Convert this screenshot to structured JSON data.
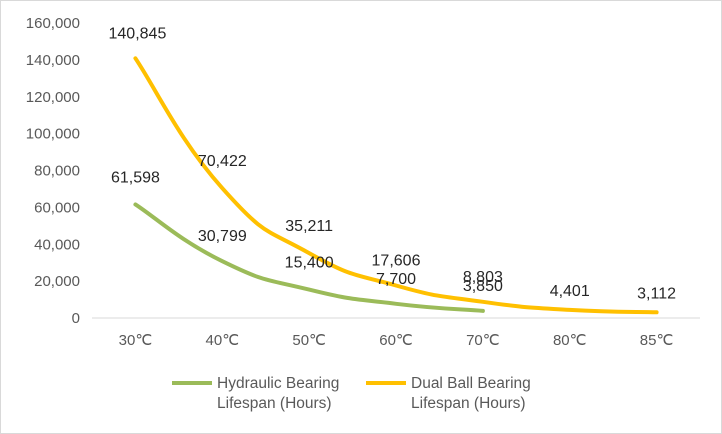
{
  "chart_data": {
    "type": "line",
    "categories": [
      "30℃",
      "40℃",
      "50℃",
      "60℃",
      "70℃",
      "80℃",
      "85℃"
    ],
    "ylim": [
      0,
      160000
    ],
    "yticks": [
      0,
      20000,
      40000,
      60000,
      80000,
      100000,
      120000,
      140000,
      160000
    ],
    "ytick_labels": [
      "0",
      "20,000",
      "40,000",
      "60,000",
      "80,000",
      "100,000",
      "120,000",
      "140,000",
      "160,000"
    ],
    "grid": false,
    "legend_position": "bottom",
    "smooth": true,
    "series": [
      {
        "name": "Hydraulic Bearing Lifespan (Hours)",
        "name_lines": [
          "Hydraulic Bearing",
          "Lifespan (Hours)"
        ],
        "color": "#9bbb59",
        "values": [
          61598,
          30799,
          15400,
          7700,
          3850,
          null,
          null
        ],
        "labels": [
          "61,598",
          "30,799",
          "15,400",
          "7,700",
          "3,850",
          null,
          null
        ]
      },
      {
        "name": "Dual Ball Bearing Lifespan (Hours)",
        "name_lines": [
          "Dual Ball Bearing",
          "Lifespan (Hours)"
        ],
        "color": "#ffc000",
        "values": [
          140845,
          70422,
          35211,
          17606,
          8803,
          4401,
          3112
        ],
        "labels": [
          "140,845",
          "70,422",
          "35,211",
          "17,606",
          "8,803",
          "4,401",
          "3,112"
        ]
      }
    ]
  }
}
